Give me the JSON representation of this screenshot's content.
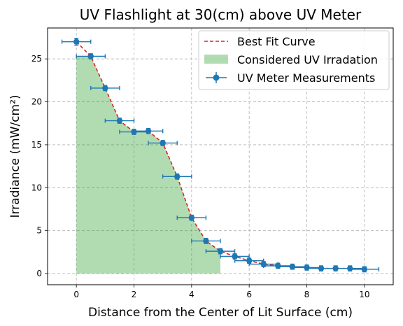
{
  "chart_data": {
    "type": "scatter",
    "title": "UV Flashlight at 30(cm) above UV Meter",
    "xlabel": "Distance from the Center of Lit Surface (cm)",
    "ylabel": "Irradiance (mW/cm²)",
    "xlim": [
      -1,
      11
    ],
    "ylim": [
      -1.3,
      28.6
    ],
    "x_ticks": [
      0,
      2,
      4,
      6,
      8,
      10
    ],
    "y_ticks": [
      0,
      5,
      10,
      15,
      20,
      25
    ],
    "grid": true,
    "legend_position": "top-right",
    "series": [
      {
        "name": "Best Fit Curve",
        "kind": "line",
        "style": "dashed",
        "color": "#d62728",
        "x": [
          0,
          0.5,
          1,
          1.5,
          2,
          2.5,
          3,
          3.5,
          4,
          4.5,
          5,
          5.5,
          6,
          6.5,
          7,
          7.5,
          8,
          8.5,
          9,
          9.5,
          10
        ],
        "y": [
          27,
          25.3,
          21.6,
          17.8,
          16.5,
          16.6,
          15.2,
          11.3,
          6.5,
          3.8,
          2.6,
          2.0,
          1.5,
          1.1,
          0.9,
          0.8,
          0.7,
          0.6,
          0.6,
          0.6,
          0.5
        ]
      },
      {
        "name": "Considered UV Irradation",
        "kind": "area",
        "color": "#2ca02c",
        "opacity": 0.37,
        "x": [
          0,
          0.5,
          1,
          1.5,
          2,
          2.5,
          3,
          3.5,
          4,
          4.5,
          5
        ],
        "y": [
          25.3,
          25.3,
          21.6,
          17.8,
          16.5,
          16.6,
          15.2,
          11.3,
          6.5,
          3.8,
          2.6
        ]
      },
      {
        "name": "UV Meter Measurements",
        "kind": "errorbar",
        "color": "#1f77b4",
        "x_error": 0.5,
        "x": [
          0,
          0.5,
          1,
          1.5,
          2,
          2.5,
          3,
          3.5,
          4,
          4.5,
          5,
          5.5,
          6,
          6.5,
          7,
          7.5,
          8,
          8.5,
          9,
          9.5,
          10
        ],
        "y": [
          27,
          25.3,
          21.6,
          17.8,
          16.5,
          16.6,
          15.2,
          11.3,
          6.5,
          3.8,
          2.6,
          2.0,
          1.5,
          1.1,
          0.9,
          0.8,
          0.7,
          0.6,
          0.6,
          0.6,
          0.5
        ],
        "y_error": [
          0.4,
          0.3,
          0.3,
          0.3,
          0.3,
          0.3,
          0.3,
          0.3,
          0.3,
          0.3,
          0.3,
          0.3,
          0.3,
          0.3,
          0.3,
          0.3,
          0.3,
          0.3,
          0.3,
          0.3,
          0.3
        ]
      }
    ]
  }
}
